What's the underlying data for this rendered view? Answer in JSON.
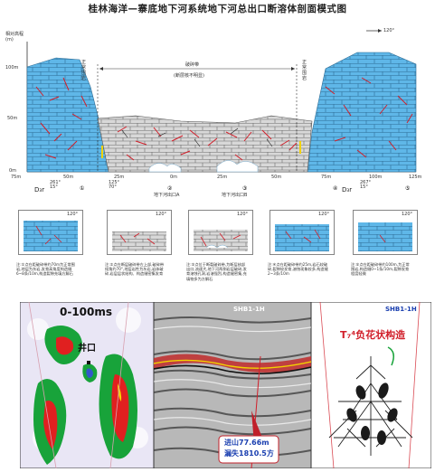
{
  "title": "桂林海洋—寨底地下河系统地下河总出口断溶体剖面模式图",
  "main_section": {
    "y_axis_title": "相对高程\n(m)",
    "y_ticks": [
      "100m",
      "50m",
      "0m"
    ],
    "x_ticks": [
      "75m",
      "50m",
      "25m",
      "0m",
      "25m",
      "50m",
      "75m",
      "100m",
      "125m"
    ],
    "direction": "120°",
    "left_label": "正常围岩",
    "right_label": "正常围岩",
    "center_label": "破碎带",
    "center_sublabel": "(断层核不明显)",
    "river_outlets": [
      "地下河出口A",
      "地下河出口B"
    ],
    "stratum_left": "D₃r",
    "stratum_right": "D₃r",
    "dip_left": "261°\n15°",
    "dip_mid": "125°\n70°",
    "dip_right": "267°\n15°",
    "circled_nums": [
      "①",
      "②",
      "③",
      "④",
      "⑤"
    ]
  },
  "small_panels": [
    {
      "angle": "120°",
      "note": "注:①点在距破碎带约70m为正常围岩,地层为灰岩,发育高角度构造缝6~8条/10m,构造裂隙充填方解石"
    },
    {
      "angle": "120°",
      "note": "注:②点在断层破碎带左上部,破碎带倾角约70°,地层岩性为灰岩,岩体破碎,岩层层状结构、构造缝密集发育"
    },
    {
      "angle": "120°",
      "note": "注:③点位于断裂破碎带,为断层核部出口,流速大,地下河两侧岩层破碎,发育溶蚀孔洞,岩溶强烈,构造缝密集,充填物多为方解石"
    },
    {
      "angle": "120°",
      "note": "注:④点在距破碎带约25m,岩石较破碎,裂隙较发育,溶蚀现象较多,构造缝2~3条/10m"
    },
    {
      "angle": "120°",
      "note": "注:⑤点在距破碎带约100m,为正常围岩,构造缝0~1条/10m,裂隙发育程度轻微"
    }
  ],
  "bottom_left": {
    "time_label": "0-100ms",
    "well_label": "井口"
  },
  "bottom_mid": {
    "line_label": "SHB1-1H",
    "annotation_line1": "进山77.66m",
    "annotation_line2": "漏失1810.5方"
  },
  "bottom_right": {
    "line_label": "SHB1-1H",
    "structure_label": "T₇⁴负花状构造"
  }
}
